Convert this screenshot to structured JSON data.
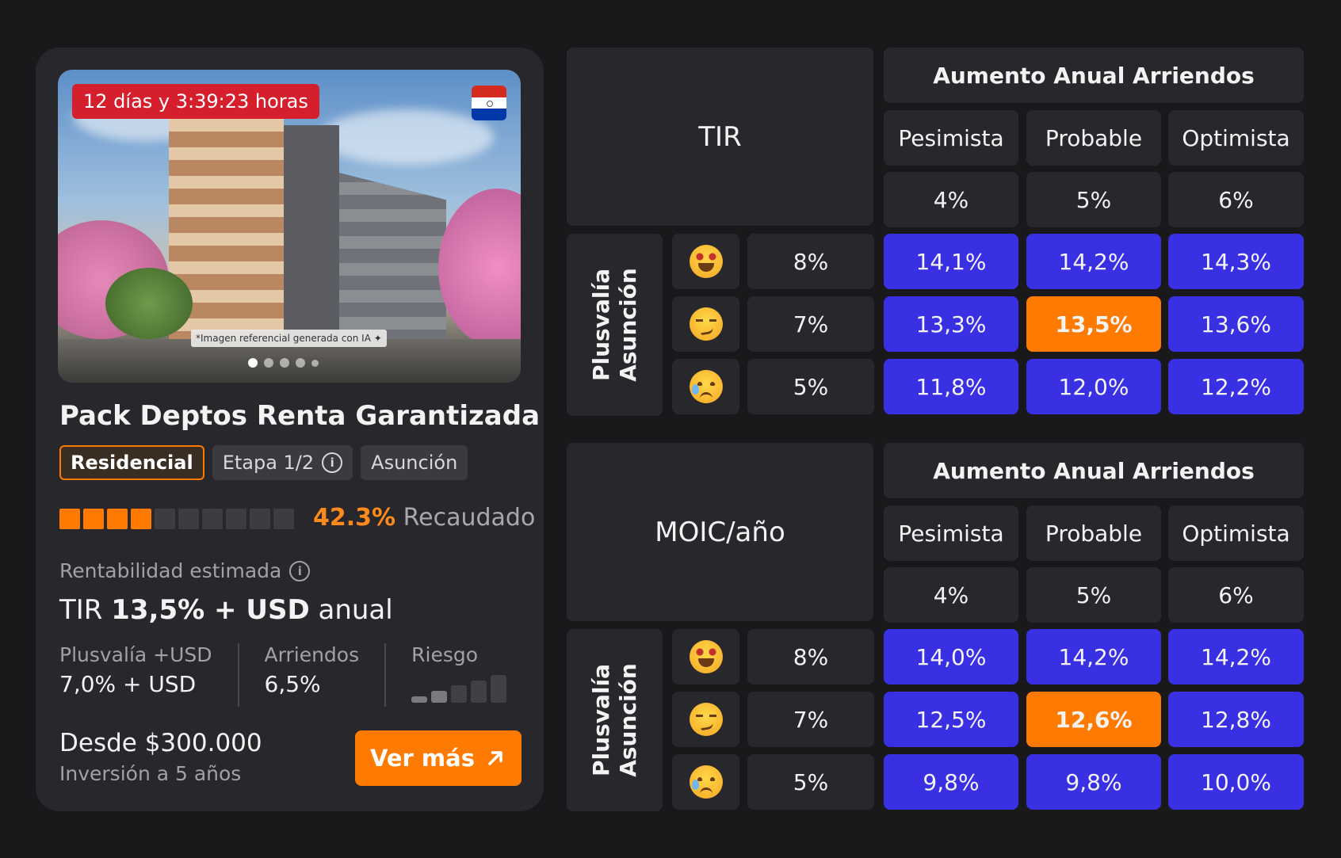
{
  "card": {
    "countdown": "12 días y 3:39:23 horas",
    "ai_note": "*Imagen referencial generada con IA ✦",
    "carousel_dots": 5,
    "carousel_active": 1,
    "title": "Pack Deptos Renta Garantizada",
    "tags": {
      "type": "Residencial",
      "stage": "Etapa 1/2",
      "location": "Asunción"
    },
    "progress": {
      "filled_segments": 4,
      "total_segments": 10,
      "percent": "42.3%",
      "label": "Recaudado"
    },
    "return": {
      "label": "Rentabilidad estimada",
      "prefix": "TIR",
      "highlight": "13,5% + USD",
      "suffix": "anual"
    },
    "stats": {
      "appreciation_label": "Plusvalía +USD",
      "appreciation_value": "7,0% + USD",
      "rent_label": "Arriendos",
      "rent_value": "6,5%",
      "risk_label": "Riesgo",
      "risk_level": 2,
      "risk_total": 5
    },
    "price": "Desde $300.000",
    "horizon": "Inversión a 5 años",
    "cta": "Ver más"
  },
  "colors": {
    "accent": "#ff7a00",
    "cell_blue": "#3a30e3",
    "countdown_red": "#d51f2d",
    "background": "#19191c",
    "panel": "#28282c"
  },
  "tables": [
    {
      "metric": "TIR",
      "header": "Aumento Anual Arriendos",
      "scenarios": [
        "Pesimista",
        "Probable",
        "Optimista"
      ],
      "rent_rates": [
        "4%",
        "5%",
        "6%"
      ],
      "row_group_label": "Plusvalía Asunción",
      "rows": [
        {
          "icon": "star-struck-emoji-icon",
          "rate": "8%",
          "values": [
            "14,1%",
            "14,2%",
            "14,3%"
          ]
        },
        {
          "icon": "smirk-emoji-icon",
          "rate": "7%",
          "values": [
            "13,3%",
            "13,5%",
            "13,6%"
          ]
        },
        {
          "icon": "sad-tear-emoji-icon",
          "rate": "5%",
          "values": [
            "11,8%",
            "12,0%",
            "12,2%"
          ]
        }
      ],
      "highlight": {
        "row": 1,
        "col": 1
      }
    },
    {
      "metric": "MOIC/año",
      "header": "Aumento Anual Arriendos",
      "scenarios": [
        "Pesimista",
        "Probable",
        "Optimista"
      ],
      "rent_rates": [
        "4%",
        "5%",
        "6%"
      ],
      "row_group_label": "Plusvalía Asunción",
      "rows": [
        {
          "icon": "star-struck-emoji-icon",
          "rate": "8%",
          "values": [
            "14,0%",
            "14,2%",
            "14,2%"
          ]
        },
        {
          "icon": "smirk-emoji-icon",
          "rate": "7%",
          "values": [
            "12,5%",
            "12,6%",
            "12,8%"
          ]
        },
        {
          "icon": "sad-tear-emoji-icon",
          "rate": "5%",
          "values": [
            "9,8%",
            "9,8%",
            "10,0%"
          ]
        }
      ],
      "highlight": {
        "row": 1,
        "col": 1
      }
    }
  ]
}
